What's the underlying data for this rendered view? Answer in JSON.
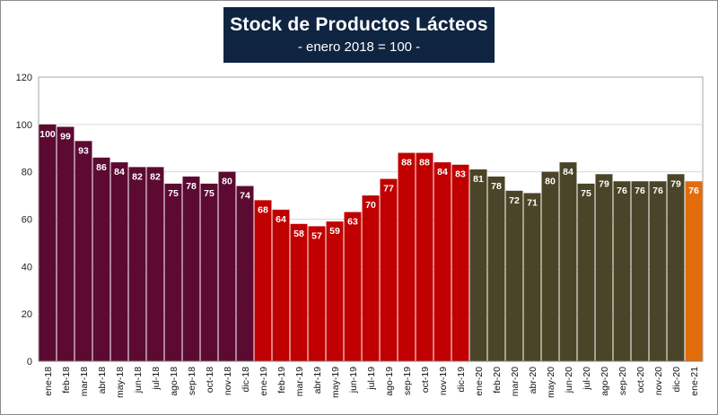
{
  "chart_data": {
    "type": "bar",
    "title": "Stock de Productos Lácteos",
    "subtitle": "- enero 2018 = 100 -",
    "xlabel": "",
    "ylabel": "",
    "ylim": [
      0,
      120
    ],
    "yticks": [
      0,
      20,
      40,
      60,
      80,
      100,
      120
    ],
    "grid": true,
    "categories": [
      "ene-18",
      "feb-18",
      "mar-18",
      "abr-18",
      "may-18",
      "jun-18",
      "jul-18",
      "ago-18",
      "sep-18",
      "oct-18",
      "nov-18",
      "dic-18",
      "ene-19",
      "feb-19",
      "mar-19",
      "abr-19",
      "may-19",
      "jun-19",
      "jul-19",
      "ago-19",
      "sep-19",
      "oct-19",
      "nov-19",
      "dic-19",
      "ene-20",
      "feb-20",
      "mar-20",
      "abr-20",
      "may-20",
      "jun-20",
      "jul-20",
      "ago-20",
      "sep-20",
      "oct-20",
      "nov-20",
      "dic-20",
      "ene-21"
    ],
    "values": [
      100,
      99,
      93,
      86,
      84,
      82,
      82,
      75,
      78,
      75,
      80,
      74,
      68,
      64,
      58,
      57,
      59,
      63,
      70,
      77,
      88,
      88,
      84,
      83,
      81,
      78,
      72,
      71,
      80,
      84,
      75,
      79,
      76,
      76,
      76,
      79,
      76
    ],
    "series_groups": [
      {
        "name": "2018",
        "start": 0,
        "count": 12,
        "color": "#5c0a32"
      },
      {
        "name": "2019",
        "start": 12,
        "count": 12,
        "color": "#c00000"
      },
      {
        "name": "2020",
        "start": 24,
        "count": 12,
        "color": "#4a4528"
      },
      {
        "name": "2021",
        "start": 36,
        "count": 1,
        "color": "#e36c0a"
      }
    ]
  }
}
